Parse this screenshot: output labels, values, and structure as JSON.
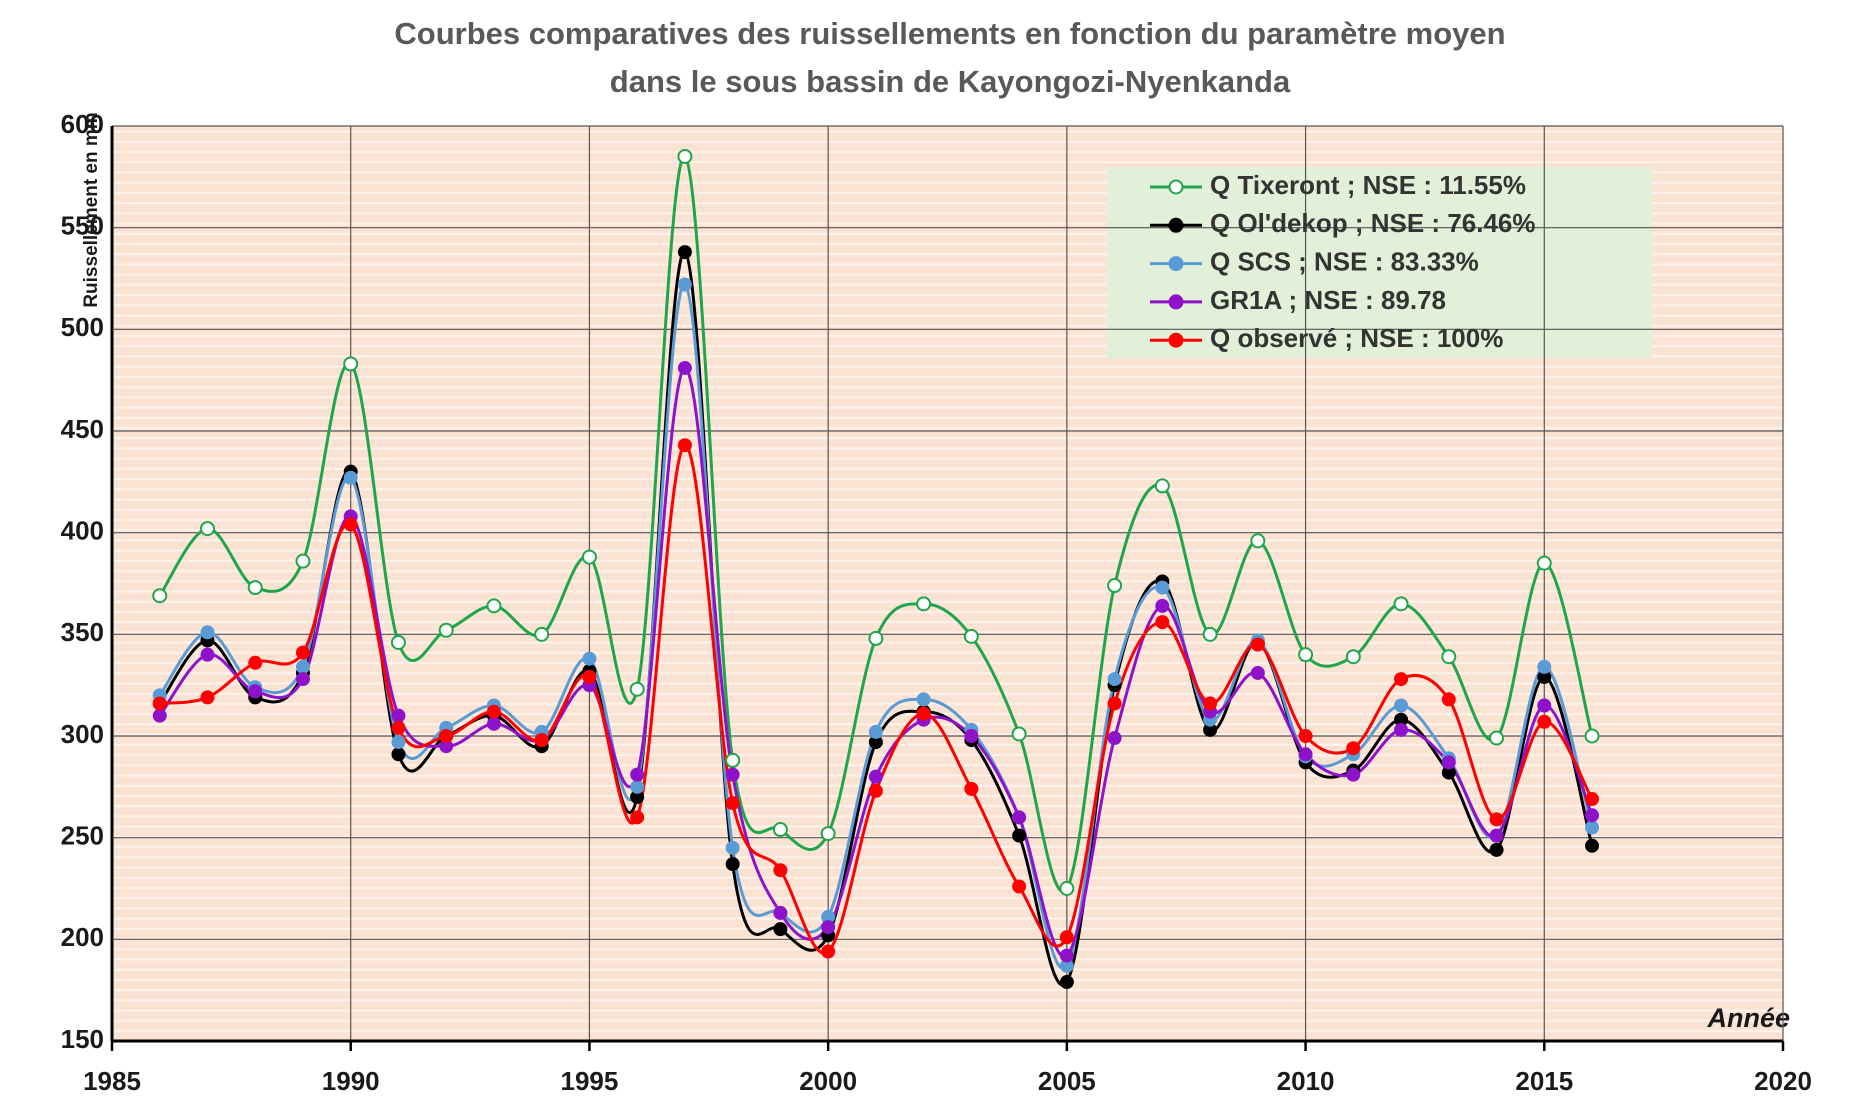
{
  "chart_data": {
    "type": "line",
    "title": [
      "Courbes comparatives des ruissellements en fonction du paramètre moyen",
      "dans le sous bassin de Kayongozi-Nyenkanda"
    ],
    "y_label": "Ruissellement en mm",
    "x_label": "Année",
    "x": [
      1986,
      1987,
      1988,
      1989,
      1990,
      1991,
      1992,
      1993,
      1994,
      1995,
      1996,
      1997,
      1998,
      1999,
      2000,
      2001,
      2002,
      2003,
      2004,
      2005,
      2006,
      2007,
      2008,
      2009,
      2010,
      2011,
      2012,
      2013,
      2014,
      2015,
      2016
    ],
    "series": [
      {
        "name": "Q Tixeront ; NSE : 11.55%",
        "color": "#1fa64a",
        "hollow": true,
        "values": [
          369,
          402,
          373,
          386,
          483,
          346,
          352,
          364,
          350,
          388,
          323,
          585,
          288,
          254,
          252,
          348,
          365,
          349,
          301,
          225,
          374,
          423,
          350,
          396,
          340,
          339,
          365,
          339,
          299,
          385,
          300
        ]
      },
      {
        "name": "Q Ol'dekop ; NSE : 76.46%",
        "color": "#000000",
        "values": [
          316,
          347,
          319,
          331,
          430,
          291,
          300,
          310,
          295,
          332,
          270,
          538,
          237,
          205,
          202,
          297,
          312,
          298,
          251,
          179,
          325,
          376,
          303,
          346,
          287,
          283,
          308,
          282,
          244,
          329,
          246
        ]
      },
      {
        "name": "Q  SCS ; NSE : 83.33%",
        "color": "#5b9bd5",
        "values": [
          320,
          351,
          324,
          334,
          427,
          297,
          304,
          315,
          302,
          338,
          275,
          522,
          245,
          213,
          211,
          302,
          318,
          303,
          260,
          187,
          328,
          373,
          308,
          347,
          290,
          291,
          315,
          289,
          251,
          334,
          255
        ]
      },
      {
        "name": "GR1A ; NSE : 89.78",
        "color": "#8e12c9",
        "values": [
          310,
          340,
          322,
          328,
          408,
          310,
          295,
          306,
          298,
          325,
          281,
          481,
          281,
          213,
          206,
          280,
          308,
          300,
          260,
          192,
          299,
          364,
          312,
          331,
          291,
          281,
          303,
          287,
          251,
          315,
          261
        ]
      },
      {
        "name": "Q observé ; NSE : 100%",
        "color": "#ff0000",
        "values": [
          316,
          319,
          336,
          341,
          404,
          304,
          300,
          312,
          298,
          329,
          260,
          443,
          267,
          234,
          194,
          273,
          311,
          274,
          226,
          201,
          316,
          356,
          316,
          345,
          300,
          294,
          328,
          318,
          259,
          307,
          269
        ]
      }
    ],
    "xlim": [
      1985,
      2020
    ],
    "xticks": [
      1985,
      1990,
      1995,
      2000,
      2005,
      2010,
      2015,
      2020
    ],
    "ylim": [
      150,
      600
    ],
    "yticks": [
      150,
      200,
      250,
      300,
      350,
      400,
      450,
      500,
      550,
      600
    ],
    "grid": true,
    "smooth": true,
    "legend": "top-right"
  }
}
